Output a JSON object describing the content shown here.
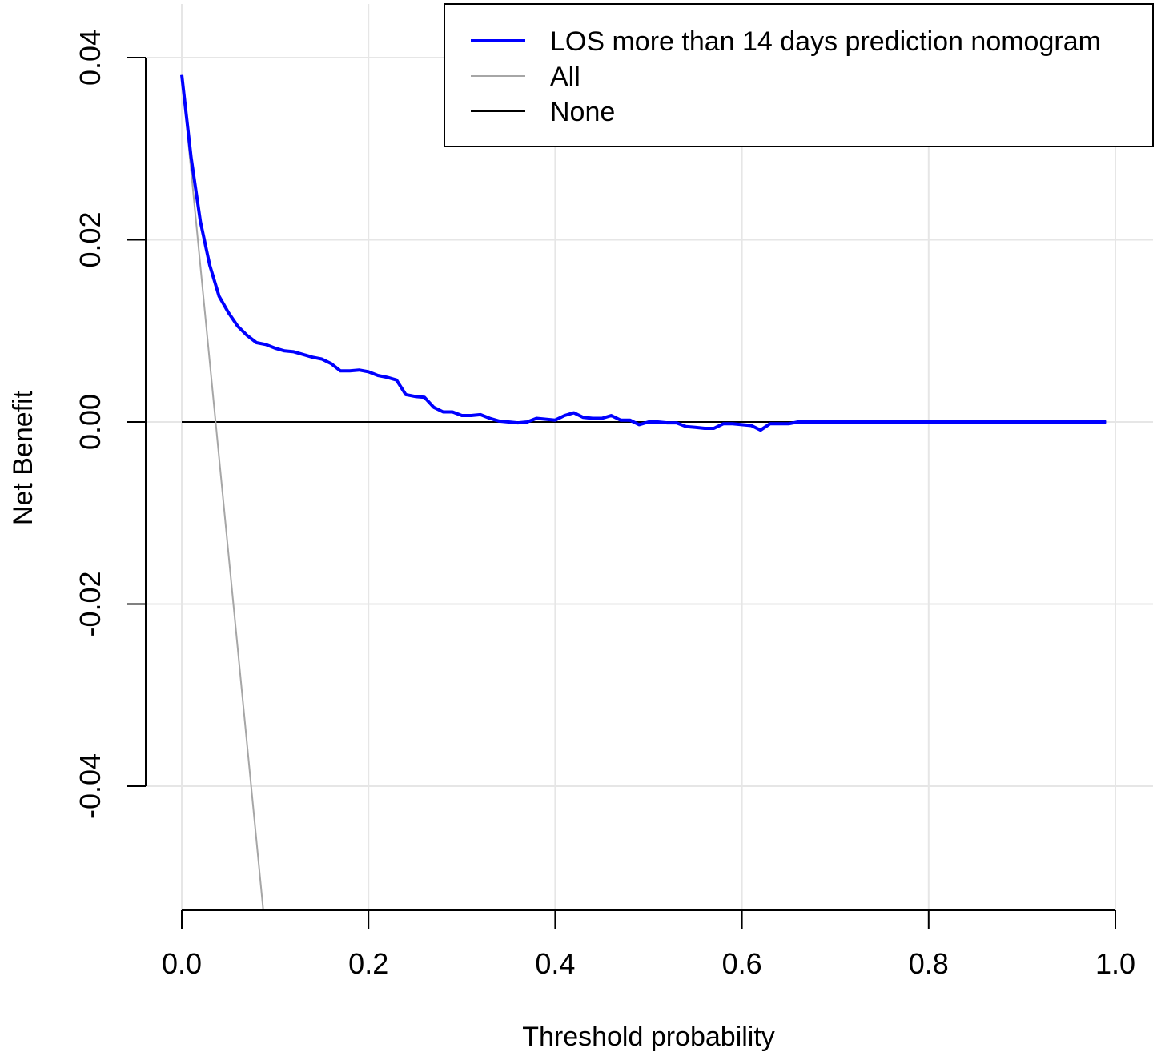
{
  "chart_data": {
    "type": "line",
    "title": "",
    "xlabel": "Threshold probability",
    "ylabel": "Net Benefit",
    "xlim": [
      0,
      1
    ],
    "ylim": [
      -0.054,
      0.041
    ],
    "x_ticks": [
      0,
      0.2,
      0.4,
      0.6,
      0.8,
      1.0
    ],
    "x_tick_labels": [
      "0.0",
      "0.2",
      "0.4",
      "0.6",
      "0.8",
      "1.0"
    ],
    "y_ticks": [
      -0.04,
      -0.02,
      0,
      0.02,
      0.04
    ],
    "y_tick_labels": [
      "-0.04",
      "-0.02",
      "0.00",
      "0.02",
      "0.04"
    ],
    "grid": true,
    "legend_position": "top-right",
    "series": [
      {
        "name": "LOS more than 14 days prediction nomogram",
        "color": "#0000ff",
        "x": [
          0.0,
          0.01,
          0.02,
          0.03,
          0.04,
          0.05,
          0.06,
          0.07,
          0.08,
          0.09,
          0.1,
          0.11,
          0.12,
          0.13,
          0.14,
          0.15,
          0.16,
          0.17,
          0.18,
          0.19,
          0.2,
          0.21,
          0.22,
          0.23,
          0.24,
          0.25,
          0.26,
          0.27,
          0.28,
          0.29,
          0.3,
          0.31,
          0.32,
          0.33,
          0.34,
          0.35,
          0.36,
          0.37,
          0.38,
          0.39,
          0.4,
          0.41,
          0.42,
          0.43,
          0.44,
          0.45,
          0.46,
          0.47,
          0.48,
          0.49,
          0.5,
          0.51,
          0.52,
          0.53,
          0.54,
          0.55,
          0.56,
          0.57,
          0.58,
          0.59,
          0.6,
          0.61,
          0.62,
          0.63,
          0.64,
          0.65,
          0.66,
          0.7,
          0.8,
          0.9,
          0.99
        ],
        "y": [
          0.0381,
          0.029,
          0.022,
          0.0172,
          0.0138,
          0.012,
          0.0105,
          0.0095,
          0.0087,
          0.0085,
          0.0081,
          0.0078,
          0.0077,
          0.0074,
          0.0071,
          0.0069,
          0.0064,
          0.0056,
          0.0056,
          0.0057,
          0.0055,
          0.0051,
          0.0049,
          0.0046,
          0.003,
          0.0028,
          0.0027,
          0.0016,
          0.0011,
          0.0011,
          0.0007,
          0.0007,
          0.0008,
          0.0004,
          0.0001,
          0.0,
          -0.0001,
          0.0,
          0.0004,
          0.0003,
          0.0002,
          0.0007,
          0.001,
          0.0005,
          0.0004,
          0.0004,
          0.0007,
          0.0002,
          0.0002,
          -0.0003,
          0.0,
          0.0,
          -0.0001,
          -0.0001,
          -0.0005,
          -0.0006,
          -0.0007,
          -0.0007,
          -0.0002,
          -0.0002,
          -0.0003,
          -0.0004,
          -0.0009,
          -0.0002,
          -0.0002,
          -0.0002,
          0.0,
          0.0,
          0.0,
          0.0,
          0.0
        ]
      },
      {
        "name": "All",
        "color": "#a6a6a6",
        "x": [
          0.0,
          0.0873
        ],
        "y": [
          0.0381,
          -0.0537
        ]
      },
      {
        "name": "None",
        "color": "#000000",
        "x": [
          0.0,
          0.99
        ],
        "y": [
          0.0,
          0.0
        ]
      }
    ]
  }
}
